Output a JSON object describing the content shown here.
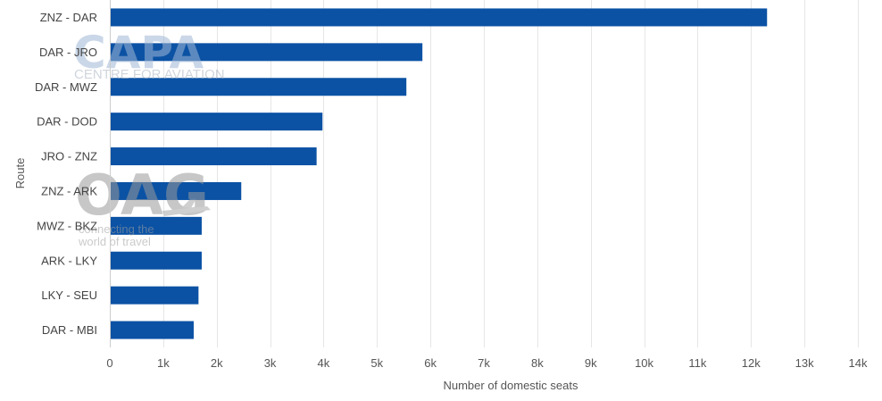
{
  "chart_data": {
    "type": "bar",
    "orientation": "horizontal",
    "categories": [
      "ZNZ - DAR",
      "DAR - JRO",
      "DAR - MWZ",
      "DAR - DOD",
      "JRO - ZNZ",
      "ZNZ - ARK",
      "MWZ - BKZ",
      "ARK - LKY",
      "LKY - SEU",
      "DAR - MBI"
    ],
    "values": [
      12300,
      5850,
      5550,
      3980,
      3870,
      2460,
      1720,
      1720,
      1660,
      1570
    ],
    "xlabel": "Number of domestic seats",
    "ylabel": "Route",
    "xlim": [
      0,
      14000
    ],
    "x_ticks": [
      0,
      1000,
      2000,
      3000,
      4000,
      5000,
      6000,
      7000,
      8000,
      9000,
      10000,
      11000,
      12000,
      13000,
      14000
    ],
    "x_tick_labels": [
      "0",
      "1k",
      "2k",
      "3k",
      "4k",
      "5k",
      "6k",
      "7k",
      "8k",
      "9k",
      "10k",
      "11k",
      "12k",
      "13k",
      "14k"
    ],
    "grid": "vertical",
    "legend": "none",
    "bar_color": "#0b52a4"
  },
  "watermarks": {
    "capa_logo": "CAPA",
    "capa_tagline": "CENTRE FOR AVIATION",
    "oag_logo": "OAG",
    "oag_line1": "connecting the",
    "oag_line2": "world of travel"
  }
}
